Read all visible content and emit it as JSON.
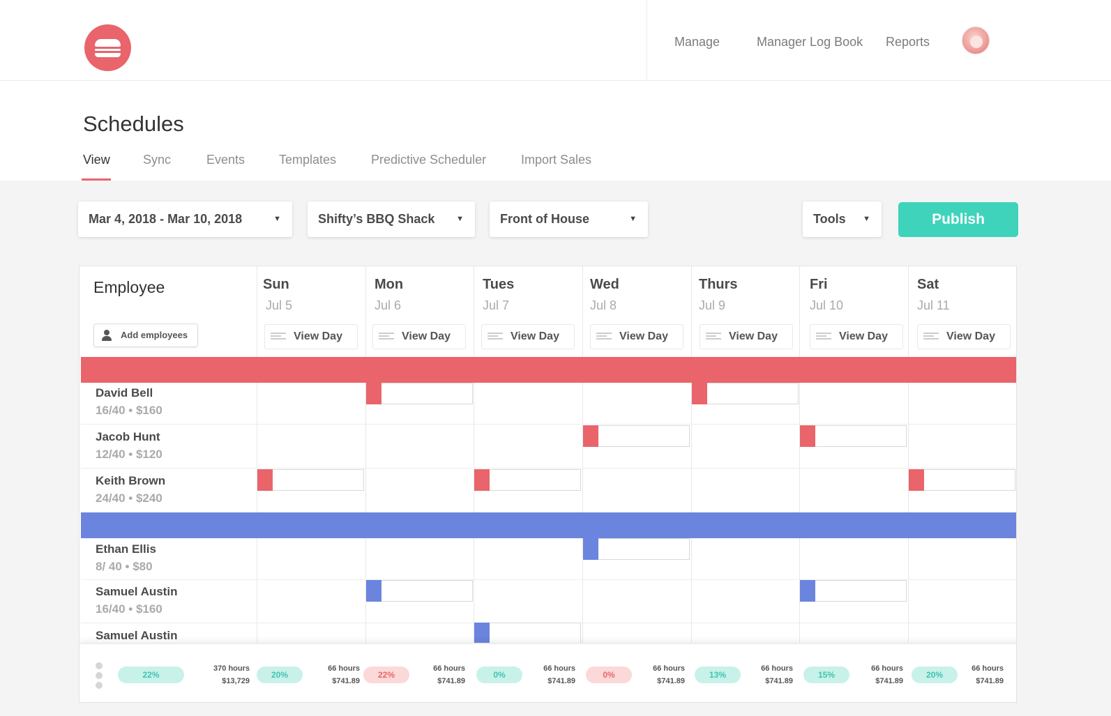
{
  "topnav": {
    "items": [
      "Manage",
      "Manager Log Book",
      "Reports"
    ]
  },
  "page": {
    "title": "Schedules",
    "tabs": [
      "View",
      "Sync",
      "Events",
      "Templates",
      "Predictive Scheduler",
      "Import Sales"
    ],
    "active_tab": "View"
  },
  "toolbar": {
    "date_range": "Mar 4, 2018 - Mar 10, 2018",
    "location": "Shifty’s BBQ Shack",
    "department": "Front of House",
    "tools": "Tools",
    "publish": "Publish"
  },
  "colors": {
    "brand": "#e9646b",
    "accent": "#3fd3bb",
    "group_blue": "#6b84dd"
  },
  "schedule": {
    "employee_header": "Employee",
    "add_employees": "Add employees",
    "view_day_label": "View Day",
    "days": [
      {
        "name": "Sun",
        "date": "Jul 5"
      },
      {
        "name": "Mon",
        "date": "Jul 6"
      },
      {
        "name": "Tues",
        "date": "Jul 7"
      },
      {
        "name": "Wed",
        "date": "Jul 8"
      },
      {
        "name": "Thurs",
        "date": "Jul 9"
      },
      {
        "name": "Fri",
        "date": "Jul 10"
      },
      {
        "name": "Sat",
        "date": "Jul 11"
      }
    ],
    "employees": [
      {
        "name": "David Bell",
        "summary": "16/40 • $160"
      },
      {
        "name": "Jacob Hunt",
        "summary": "12/40 • $120"
      },
      {
        "name": "Keith Brown",
        "summary": "24/40 • $240"
      },
      {
        "name": "Ethan Ellis",
        "summary": "8/ 40 • $80"
      },
      {
        "name": "Samuel Austin",
        "summary": "16/40 • $160"
      },
      {
        "name": "Samuel Austin",
        "summary": ""
      }
    ]
  },
  "footer": {
    "pills": [
      "22%",
      "20%",
      "22%",
      "0%",
      "0%",
      "13%",
      "15%",
      "20%"
    ],
    "stats": [
      {
        "hours": "370 hours",
        "cost": "$13,729"
      },
      {
        "hours": "66 hours",
        "cost": "$741.89"
      },
      {
        "hours": "66 hours",
        "cost": "$741.89"
      },
      {
        "hours": "66 hours",
        "cost": "$741.89"
      },
      {
        "hours": "66 hours",
        "cost": "$741.89"
      },
      {
        "hours": "66 hours",
        "cost": "$741.89"
      },
      {
        "hours": "66 hours",
        "cost": "$741.89"
      },
      {
        "hours": "66 hours",
        "cost": "$741.89"
      }
    ]
  }
}
